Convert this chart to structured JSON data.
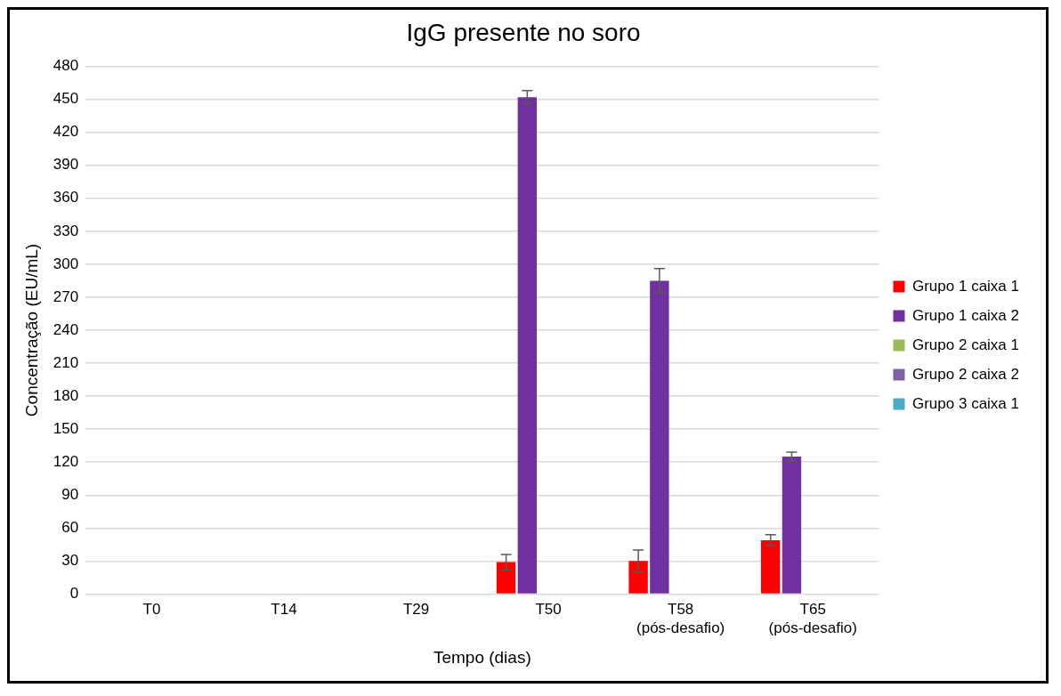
{
  "chart_data": {
    "type": "bar",
    "title": "IgG presente no soro",
    "xlabel": "Tempo (dias)",
    "ylabel": "Concentração (EU/mL)",
    "categories": [
      "T0",
      "T14",
      "T29",
      "T50",
      "T58\n(pós-desafio)",
      "T65\n(pós-desafio)"
    ],
    "series": [
      {
        "name": "Grupo 1 caixa 1",
        "color": "#ff0000",
        "values": [
          0,
          0,
          0,
          29,
          30,
          49
        ],
        "errors": [
          null,
          null,
          null,
          7,
          10,
          5
        ]
      },
      {
        "name": "Grupo 1 caixa 2",
        "color": "#7030a0",
        "values": [
          0,
          0,
          0,
          452,
          285,
          125
        ],
        "errors": [
          null,
          null,
          null,
          6,
          11,
          4
        ]
      },
      {
        "name": "Grupo 2 caixa 1",
        "color": "#9bbb59",
        "values": [
          0,
          0,
          0,
          0,
          0,
          0
        ]
      },
      {
        "name": "Grupo 2 caixa 2",
        "color": "#8064a2",
        "values": [
          0,
          0,
          0,
          0,
          0,
          0
        ]
      },
      {
        "name": "Grupo 3 caixa 1",
        "color": "#4bacc6",
        "values": [
          0,
          0,
          0,
          0,
          0,
          0
        ]
      }
    ],
    "ylim": [
      0,
      480
    ],
    "yticks": [
      0,
      30,
      60,
      90,
      120,
      150,
      180,
      210,
      240,
      270,
      300,
      330,
      360,
      390,
      420,
      450,
      480
    ],
    "grid": "y",
    "legend": "right"
  }
}
